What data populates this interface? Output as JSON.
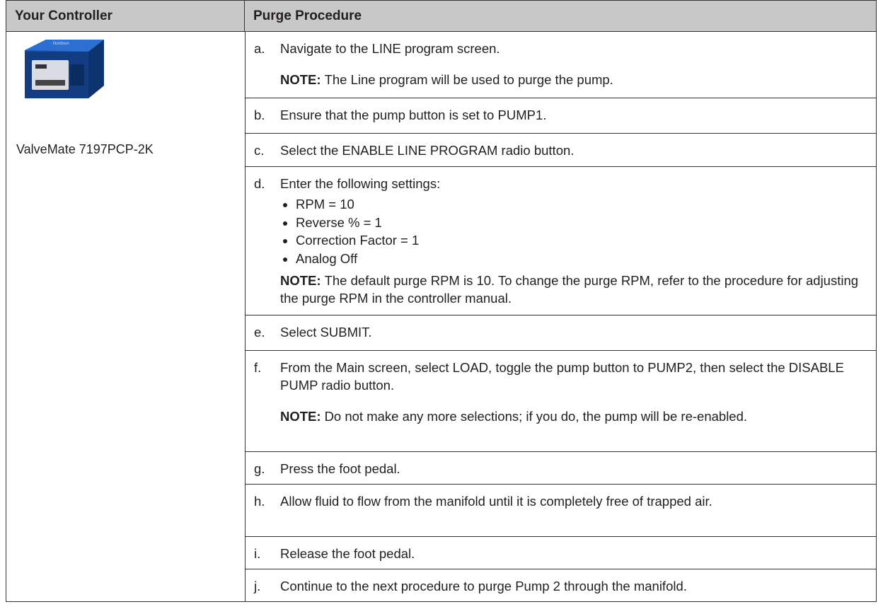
{
  "table": {
    "headers": [
      "Your Controller",
      "Purge Procedure"
    ],
    "controller": {
      "label": "ValveMate 7197PCP-2K"
    },
    "steps": [
      {
        "letter": "a.",
        "text": "Navigate to the LINE program screen.",
        "note": {
          "label": "NOTE:",
          "text": "The Line program will be used to purge the pump."
        }
      },
      {
        "letter": "b.",
        "text": "Ensure that the pump button is set to PUMP1."
      },
      {
        "letter": "c.",
        "text": "Select the ENABLE LINE PROGRAM radio button."
      },
      {
        "letter": "d.",
        "text": "Enter the following settings:",
        "bullets": [
          "RPM = 10",
          "Reverse % = 1",
          "Correction Factor = 1",
          "Analog Off"
        ],
        "note": {
          "label": "NOTE:",
          "text": "The default purge RPM is 10. To change the purge RPM, refer to the procedure for adjusting the purge RPM in the controller manual."
        }
      },
      {
        "letter": "e.",
        "text": "Select SUBMIT."
      },
      {
        "letter": "f.",
        "text": "From the Main screen, select LOAD, toggle the pump button to PUMP2, then select the DISABLE PUMP radio button.",
        "note": {
          "label": "NOTE:",
          "text": "Do not make any more selections; if you do, the pump will be re-enabled."
        }
      },
      {
        "letter": "g.",
        "text": "Press the foot pedal."
      },
      {
        "letter": "h.",
        "text": "Allow fluid to flow from the manifold until it is completely free of trapped air."
      },
      {
        "letter": "i.",
        "text": "Release the foot pedal."
      },
      {
        "letter": "j.",
        "text": "Continue to the next procedure to purge Pump 2 through the manifold."
      }
    ]
  }
}
